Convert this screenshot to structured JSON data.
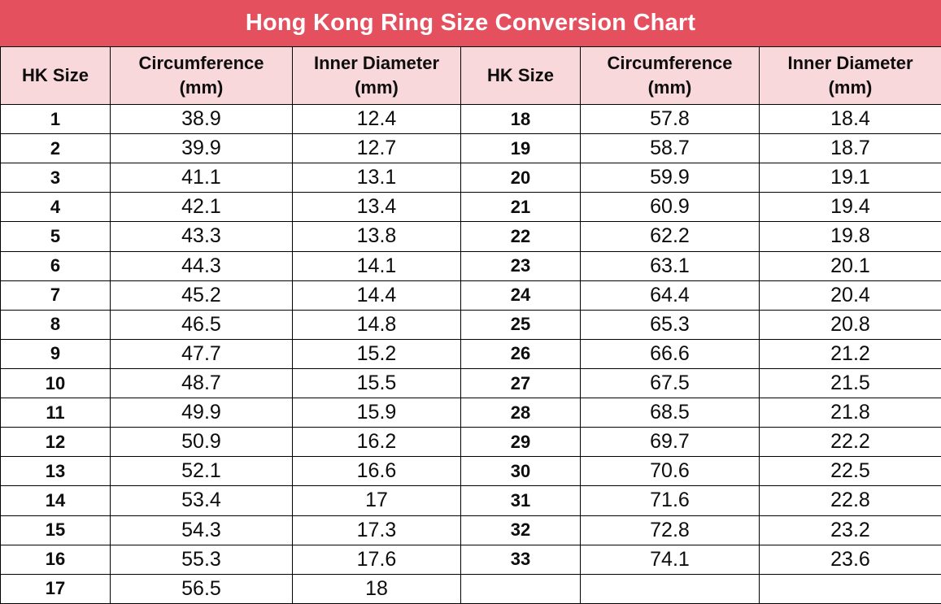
{
  "title": "Hong Kong Ring Size Conversion Chart",
  "colors": {
    "title_bar_bg": "#e5505f",
    "title_text": "#ffffff",
    "header_bg": "#f9d8dc",
    "border": "#000000",
    "cell_text": "#0d0d0d"
  },
  "table": {
    "columns": [
      {
        "label": "HK Size",
        "sub": ""
      },
      {
        "label": "Circumference",
        "sub": "(mm)"
      },
      {
        "label": "Inner Diameter",
        "sub": "(mm)"
      },
      {
        "label": "HK Size",
        "sub": ""
      },
      {
        "label": "Circumference",
        "sub": "(mm)"
      },
      {
        "label": "Inner Diameter",
        "sub": "(mm)"
      }
    ],
    "rows": [
      [
        "1",
        "38.9",
        "12.4",
        "18",
        "57.8",
        "18.4"
      ],
      [
        "2",
        "39.9",
        "12.7",
        "19",
        "58.7",
        "18.7"
      ],
      [
        "3",
        "41.1",
        "13.1",
        "20",
        "59.9",
        "19.1"
      ],
      [
        "4",
        "42.1",
        "13.4",
        "21",
        "60.9",
        "19.4"
      ],
      [
        "5",
        "43.3",
        "13.8",
        "22",
        "62.2",
        "19.8"
      ],
      [
        "6",
        "44.3",
        "14.1",
        "23",
        "63.1",
        "20.1"
      ],
      [
        "7",
        "45.2",
        "14.4",
        "24",
        "64.4",
        "20.4"
      ],
      [
        "8",
        "46.5",
        "14.8",
        "25",
        "65.3",
        "20.8"
      ],
      [
        "9",
        "47.7",
        "15.2",
        "26",
        "66.6",
        "21.2"
      ],
      [
        "10",
        "48.7",
        "15.5",
        "27",
        "67.5",
        "21.5"
      ],
      [
        "11",
        "49.9",
        "15.9",
        "28",
        "68.5",
        "21.8"
      ],
      [
        "12",
        "50.9",
        "16.2",
        "29",
        "69.7",
        "22.2"
      ],
      [
        "13",
        "52.1",
        "16.6",
        "30",
        "70.6",
        "22.5"
      ],
      [
        "14",
        "53.4",
        "17",
        "31",
        "71.6",
        "22.8"
      ],
      [
        "15",
        "54.3",
        "17.3",
        "32",
        "72.8",
        "23.2"
      ],
      [
        "16",
        "55.3",
        "17.6",
        "33",
        "74.1",
        "23.6"
      ],
      [
        "17",
        "56.5",
        "18",
        "",
        "",
        ""
      ]
    ]
  },
  "chart_data": {
    "type": "table",
    "title": "Hong Kong Ring Size Conversion Chart",
    "columns": [
      "HK Size",
      "Circumference (mm)",
      "Inner Diameter (mm)"
    ],
    "rows": [
      [
        1,
        38.9,
        12.4
      ],
      [
        2,
        39.9,
        12.7
      ],
      [
        3,
        41.1,
        13.1
      ],
      [
        4,
        42.1,
        13.4
      ],
      [
        5,
        43.3,
        13.8
      ],
      [
        6,
        44.3,
        14.1
      ],
      [
        7,
        45.2,
        14.4
      ],
      [
        8,
        46.5,
        14.8
      ],
      [
        9,
        47.7,
        15.2
      ],
      [
        10,
        48.7,
        15.5
      ],
      [
        11,
        49.9,
        15.9
      ],
      [
        12,
        50.9,
        16.2
      ],
      [
        13,
        52.1,
        16.6
      ],
      [
        14,
        53.4,
        17
      ],
      [
        15,
        54.3,
        17.3
      ],
      [
        16,
        55.3,
        17.6
      ],
      [
        17,
        56.5,
        18
      ],
      [
        18,
        57.8,
        18.4
      ],
      [
        19,
        58.7,
        18.7
      ],
      [
        20,
        59.9,
        19.1
      ],
      [
        21,
        60.9,
        19.4
      ],
      [
        22,
        62.2,
        19.8
      ],
      [
        23,
        63.1,
        20.1
      ],
      [
        24,
        64.4,
        20.4
      ],
      [
        25,
        65.3,
        20.8
      ],
      [
        26,
        66.6,
        21.2
      ],
      [
        27,
        67.5,
        21.5
      ],
      [
        28,
        68.5,
        21.8
      ],
      [
        29,
        69.7,
        22.2
      ],
      [
        30,
        70.6,
        22.5
      ],
      [
        31,
        71.6,
        22.8
      ],
      [
        32,
        72.8,
        23.2
      ],
      [
        33,
        74.1,
        23.6
      ]
    ]
  }
}
